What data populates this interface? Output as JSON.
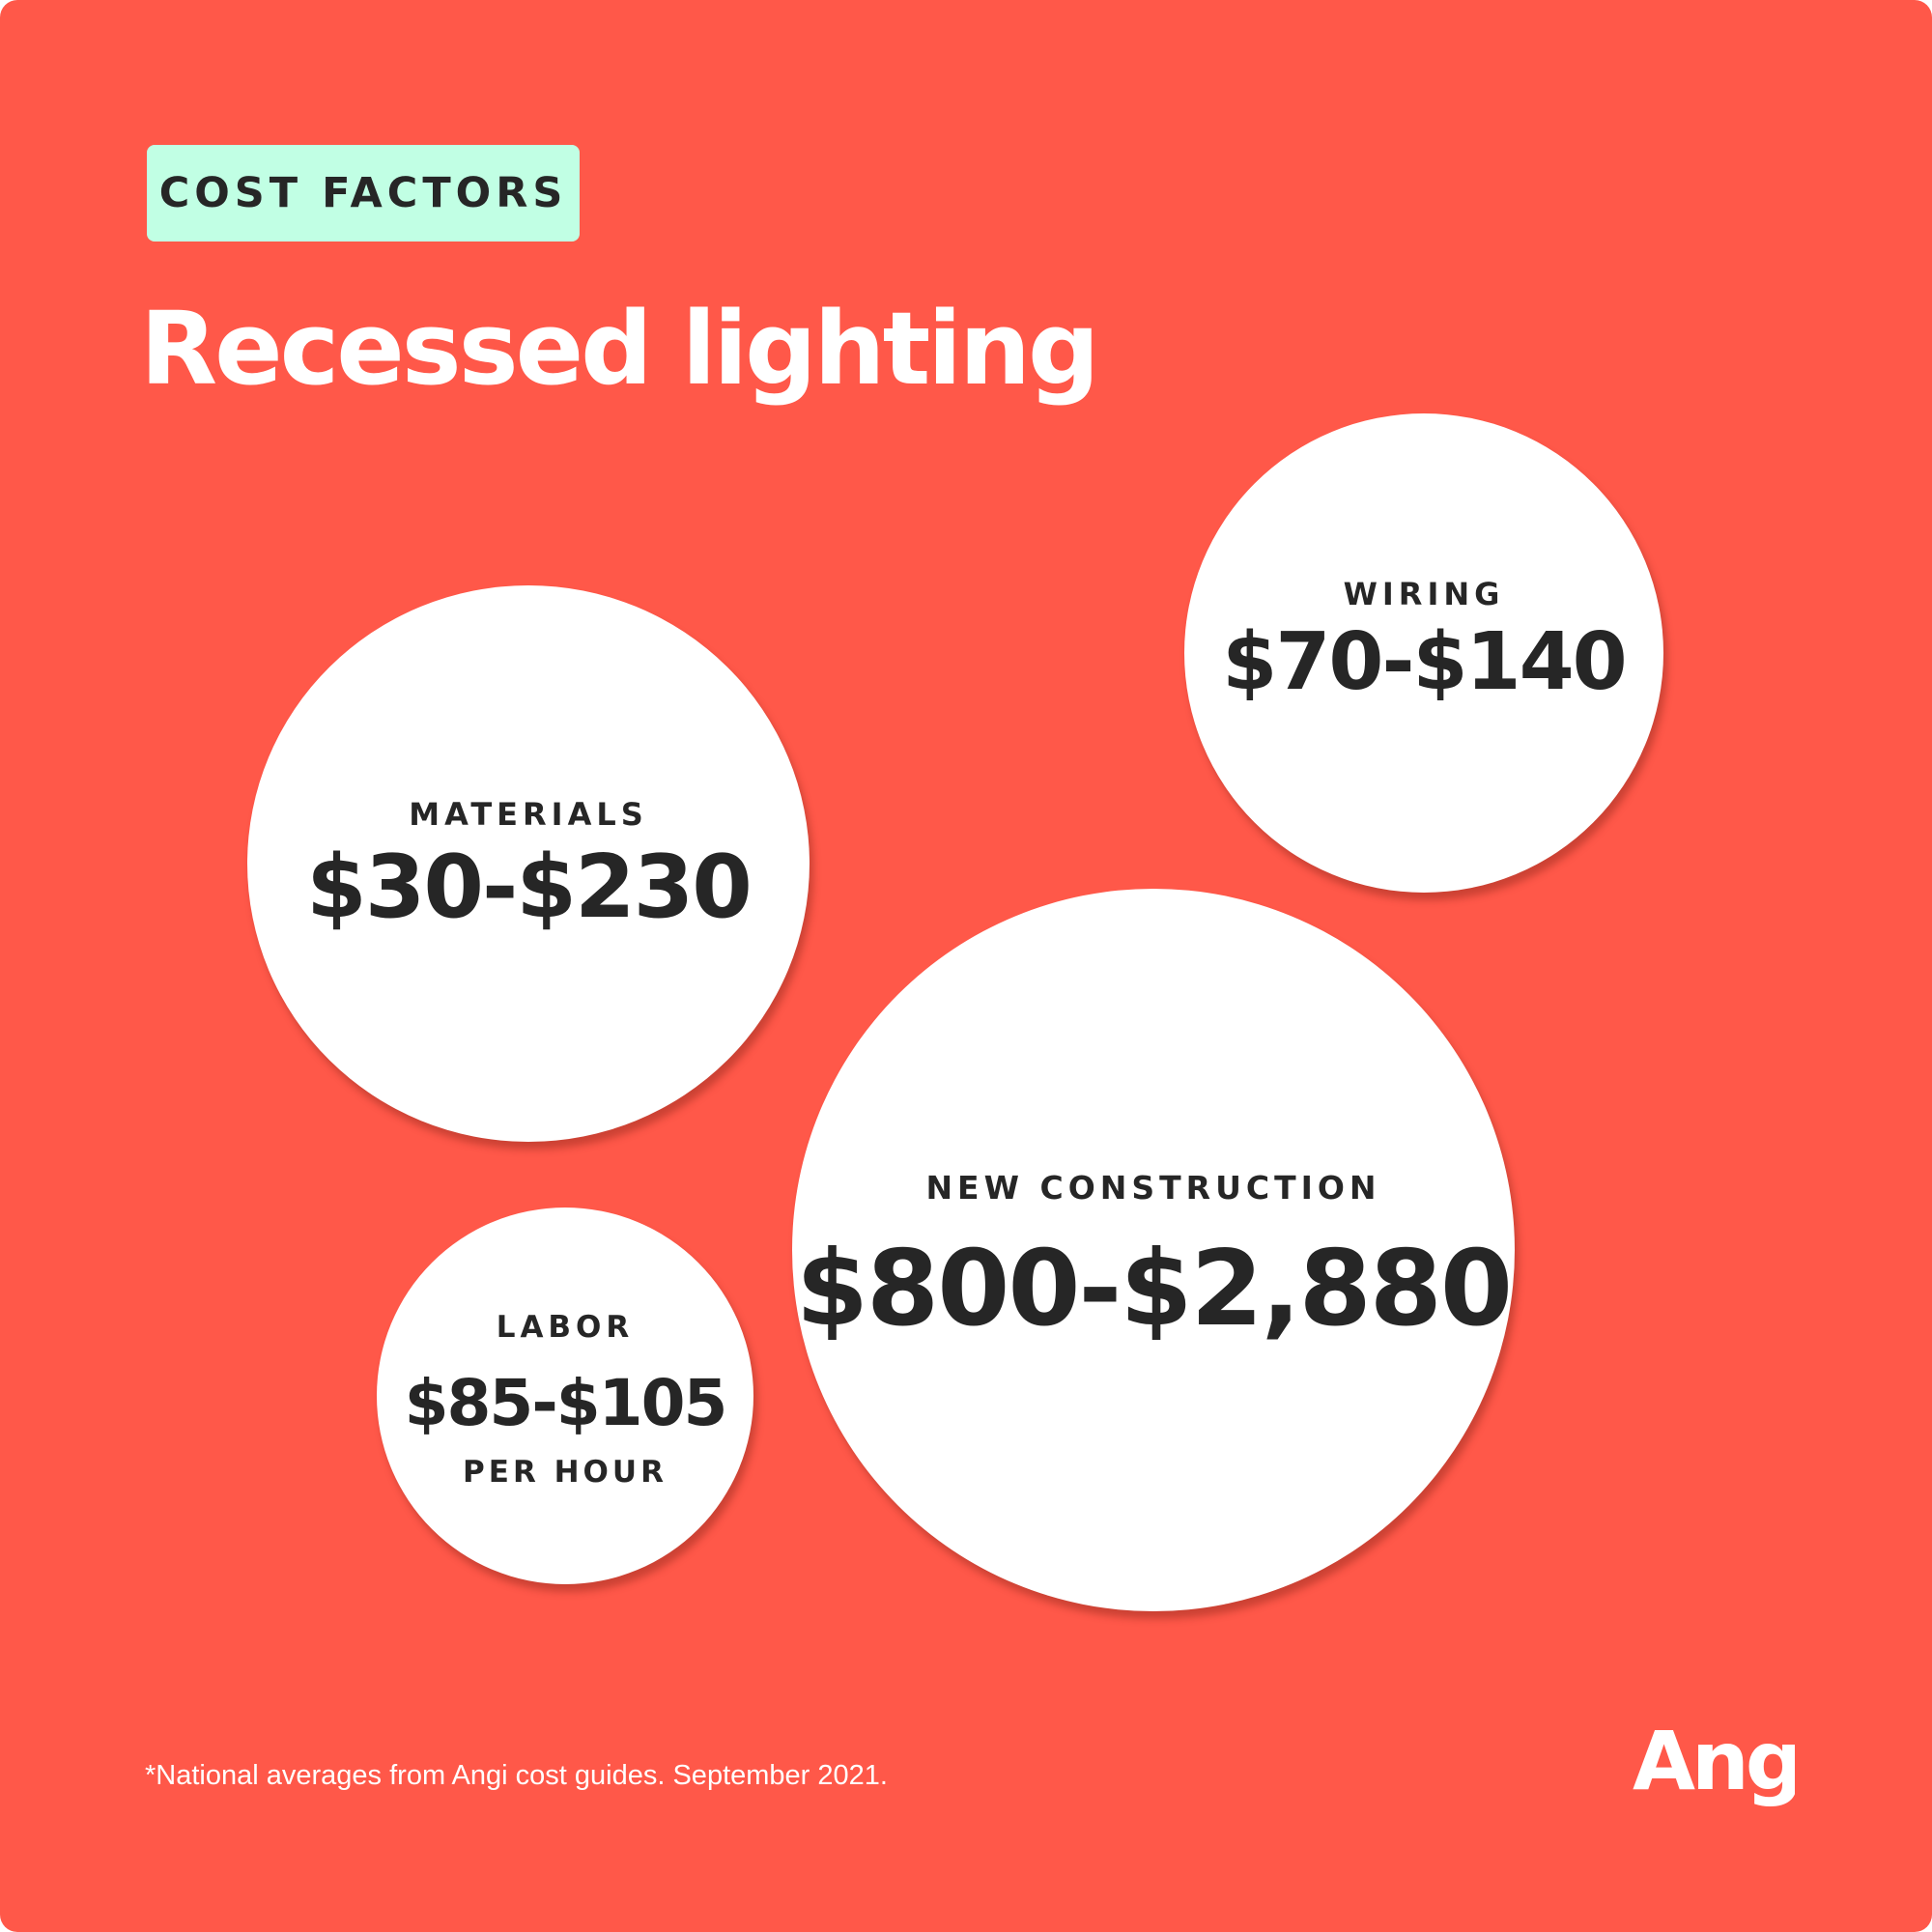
{
  "header": {
    "tag": "COST FACTORS",
    "title": "Recessed lighting"
  },
  "factors": [
    {
      "label": "WIRING",
      "value": "$70-$140"
    },
    {
      "label": "MATERIALS",
      "value": "$30-$230"
    },
    {
      "label": "NEW CONSTRUCTION",
      "value": "$800-$2,880"
    },
    {
      "label": "LABOR",
      "value": "$85-$105",
      "sub": "PER HOUR"
    }
  ],
  "footnote": "*National averages from Angi cost guides. September 2021.",
  "logo": {
    "text": "Angi"
  },
  "colors": {
    "background": "#FF5849",
    "tag_background": "#C1FFE4",
    "bubble": "#FFFFFF",
    "text_dark": "#262626",
    "text_light": "#FFFFFF"
  }
}
